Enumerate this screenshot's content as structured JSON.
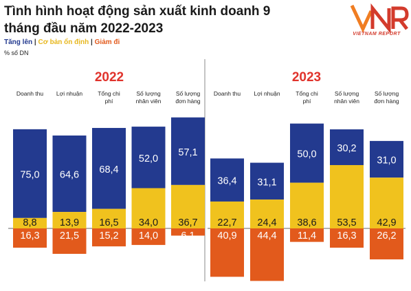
{
  "title": "Tình hình hoạt động sản xuất kinh doanh 9 tháng đầu năm 2022-2023",
  "legend": {
    "up": "Tăng lên",
    "flat": "Cơ bản ổn định",
    "down": "Giảm đi",
    "separator": "|"
  },
  "unit": "% số DN",
  "logo": {
    "mark": "VNR",
    "text": "VIETNAM REPORT"
  },
  "colors": {
    "up": "#233a8f",
    "flat": "#f0c21e",
    "down": "#e25a1c",
    "year": "#e0332c"
  },
  "chart_data": [
    {
      "type": "bar",
      "stacked": "diverging",
      "title": "2022",
      "categories": [
        "Doanh thu",
        "Lợi nhuận",
        "Tổng chi phí",
        "Số lượng nhân viên",
        "Số lượng đơn hàng"
      ],
      "series": [
        {
          "name": "Tăng lên",
          "values": [
            75.0,
            64.6,
            68.4,
            52.0,
            57.1
          ]
        },
        {
          "name": "Cơ bản ổn định",
          "values": [
            8.8,
            13.9,
            16.5,
            34.0,
            36.7
          ]
        },
        {
          "name": "Giảm đi",
          "values": [
            16.3,
            21.5,
            15.2,
            14.0,
            6.1
          ]
        }
      ],
      "labels": {
        "up": [
          "75,0",
          "64,6",
          "68,4",
          "52,0",
          "57,1"
        ],
        "flat": [
          "8,8",
          "13,9",
          "16,5",
          "34,0",
          "36,7"
        ],
        "down": [
          "16,3",
          "21,5",
          "15,2",
          "14,0",
          "6,1"
        ]
      }
    },
    {
      "type": "bar",
      "stacked": "diverging",
      "title": "2023",
      "categories": [
        "Doanh thu",
        "Lợi nhuận",
        "Tổng chi phí",
        "Số lượng nhân viên",
        "Số lượng đơn hàng"
      ],
      "series": [
        {
          "name": "Tăng lên",
          "values": [
            36.4,
            31.1,
            50.0,
            30.2,
            31.0
          ]
        },
        {
          "name": "Cơ bản ổn định",
          "values": [
            22.7,
            24.4,
            38.6,
            53.5,
            42.9
          ]
        },
        {
          "name": "Giảm đi",
          "values": [
            40.9,
            44.4,
            11.4,
            16.3,
            26.2
          ]
        }
      ],
      "labels": {
        "up": [
          "36,4",
          "31,1",
          "50,0",
          "30,2",
          "31,0"
        ],
        "flat": [
          "22,7",
          "24,4",
          "38,6",
          "53,5",
          "42,9"
        ],
        "down": [
          "40,9",
          "44,4",
          "11,4",
          "16,3",
          "26,2"
        ]
      }
    }
  ]
}
